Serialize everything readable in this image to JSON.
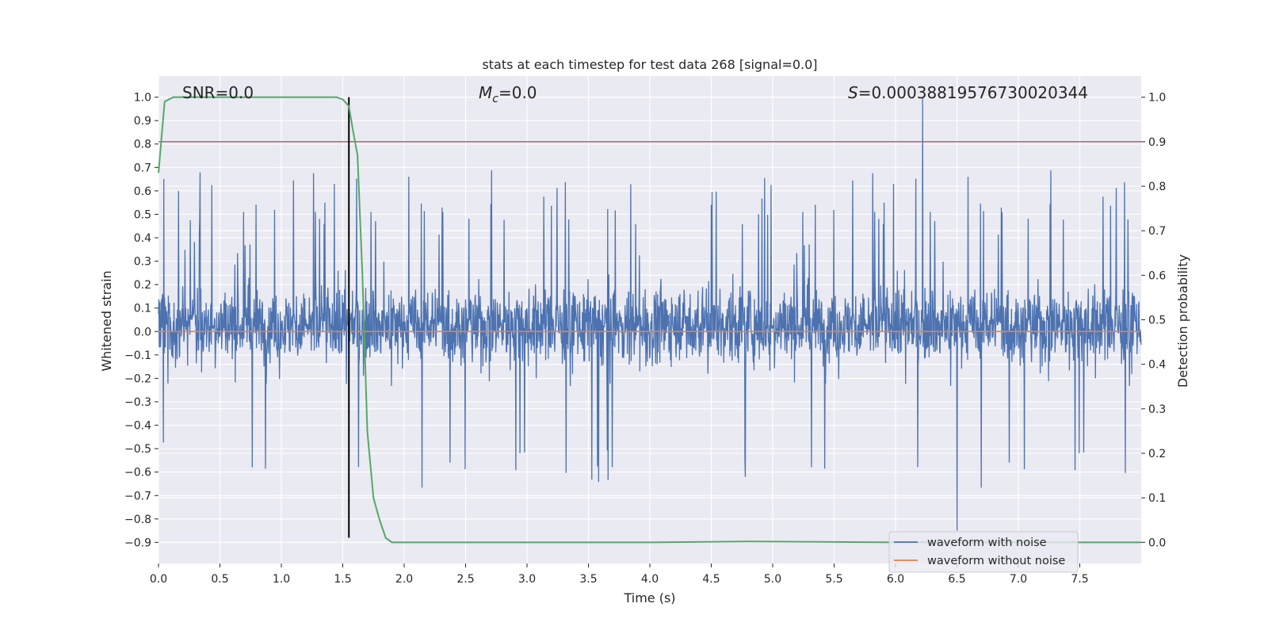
{
  "chart_data": {
    "type": "line",
    "title": "stats at each timestep for test data 268 [signal=0.0]",
    "xlabel": "Time (s)",
    "ylabel": "Whitened strain",
    "y2label": "Detection probability",
    "xlim": [
      0.0,
      8.0
    ],
    "ylim": [
      -0.99,
      1.09
    ],
    "y2lim": [
      -0.0475,
      1.0475
    ],
    "x_ticks": [
      0.0,
      0.5,
      1.0,
      1.5,
      2.0,
      2.5,
      3.0,
      3.5,
      4.0,
      4.5,
      5.0,
      5.5,
      6.0,
      6.5,
      7.0,
      7.5
    ],
    "x_tick_labels": [
      "0.0",
      "0.5",
      "1.0",
      "1.5",
      "2.0",
      "2.5",
      "3.0",
      "3.5",
      "4.0",
      "4.5",
      "5.0",
      "5.5",
      "6.0",
      "6.5",
      "7.0",
      "7.5"
    ],
    "y_ticks": [
      1.0,
      0.9,
      0.8,
      0.7,
      0.6,
      0.5,
      0.4,
      0.3,
      0.2,
      0.1,
      0.0,
      -0.1,
      -0.2,
      -0.3,
      -0.4,
      -0.5,
      -0.6,
      -0.7,
      -0.8,
      -0.9
    ],
    "y_tick_labels": [
      "1.0",
      "0.9",
      "0.8",
      "0.7",
      "0.6",
      "0.5",
      "0.4",
      "0.3",
      "0.2",
      "0.1",
      "0.0",
      "−0.1",
      "−0.2",
      "−0.3",
      "−0.4",
      "−0.5",
      "−0.6",
      "−0.7",
      "−0.8",
      "−0.9"
    ],
    "y2_ticks": [
      1.0,
      0.9,
      0.8,
      0.7,
      0.6,
      0.5,
      0.4,
      0.3,
      0.2,
      0.1,
      0.0
    ],
    "y2_tick_labels": [
      "1.0",
      "0.9",
      "0.8",
      "0.7",
      "0.6",
      "0.5",
      "0.4",
      "0.3",
      "0.2",
      "0.1",
      "0.0"
    ],
    "grid": true,
    "legend_position": "lower-right",
    "annotations": {
      "snr": "SNR=0.0",
      "mc_symbol": "M",
      "mc_sub": "c",
      "mc_value": "=0.0",
      "s_symbol": "S",
      "s_value": "=0.00038819576730020344"
    },
    "threshold": {
      "value": 0.9,
      "axis": "y2",
      "color": "#c44e52"
    },
    "vertical_marker": {
      "x": 1.55,
      "y_range": [
        -0.88,
        1.0
      ],
      "color": "#000000"
    },
    "series": [
      {
        "name": "waveform with noise",
        "axis": "y",
        "color": "#4c72b0",
        "kind": "noise",
        "t_range": [
          0.0,
          8.0
        ],
        "dense_band": [
          -0.15,
          0.2
        ],
        "typical_extent": [
          -0.5,
          0.6
        ],
        "max_peak": {
          "x": 6.22,
          "y": 1.0
        },
        "min_dip": {
          "x": 6.5,
          "y": -0.85
        }
      },
      {
        "name": "waveform without noise",
        "axis": "y",
        "color": "#dd8452",
        "x": [
          0.0,
          8.0
        ],
        "values": [
          0.0,
          0.0
        ]
      },
      {
        "name": "detection probability",
        "axis": "y2",
        "color": "#55a868",
        "x": [
          0.0,
          0.05,
          0.12,
          0.25,
          0.5,
          1.0,
          1.3,
          1.45,
          1.5,
          1.55,
          1.58,
          1.62,
          1.66,
          1.7,
          1.75,
          1.8,
          1.85,
          1.9,
          2.5,
          4.0,
          4.8,
          6.0,
          8.0
        ],
        "values": [
          0.83,
          0.99,
          1.0,
          1.0,
          1.0,
          1.0,
          1.0,
          1.0,
          0.995,
          0.98,
          0.93,
          0.87,
          0.6,
          0.25,
          0.1,
          0.05,
          0.01,
          0.0,
          0.0,
          0.0,
          0.002,
          0.0,
          0.0
        ]
      }
    ],
    "legend": [
      {
        "label": "waveform with noise",
        "color": "#4c72b0"
      },
      {
        "label": "waveform without noise",
        "color": "#dd8452"
      }
    ],
    "colors": {
      "plot_bg": "#eaeaf2",
      "grid": "#ffffff",
      "text": "#262626"
    }
  }
}
